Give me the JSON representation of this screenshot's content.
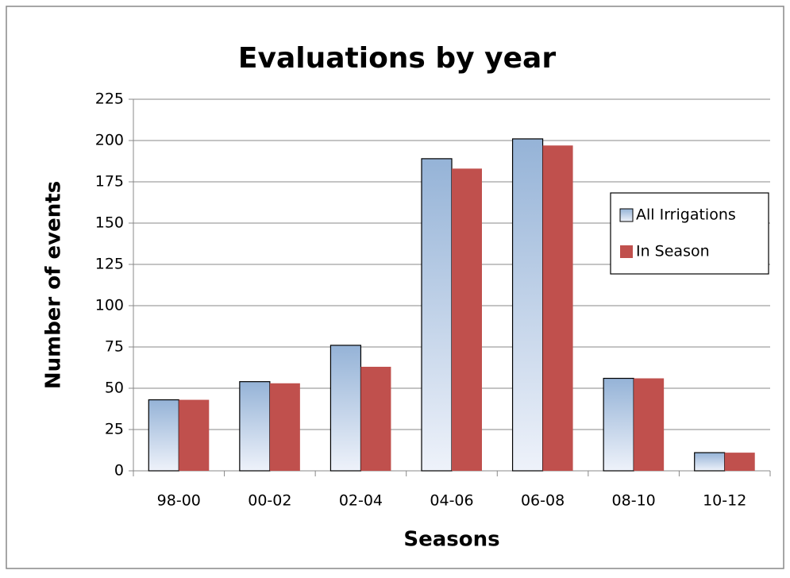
{
  "chart_data": {
    "type": "bar",
    "title": "Evaluations by year",
    "x_label": "Seasons",
    "y_label": "Number of events",
    "categories": [
      "98-00",
      "00-02",
      "02-04",
      "04-06",
      "06-08",
      "08-10",
      "10-12"
    ],
    "series": [
      {
        "name": "All Irrigations",
        "color": "#95b3d7",
        "values": [
          43,
          54,
          76,
          189,
          201,
          56,
          11
        ]
      },
      {
        "name": "In Season",
        "color": "#c0504d",
        "values": [
          43,
          53,
          63,
          183,
          197,
          56,
          11
        ]
      }
    ],
    "ylim": [
      0,
      225
    ],
    "yticks": [
      0,
      25,
      50,
      75,
      100,
      125,
      150,
      175,
      200,
      225
    ],
    "grid": true,
    "legend": "right"
  }
}
